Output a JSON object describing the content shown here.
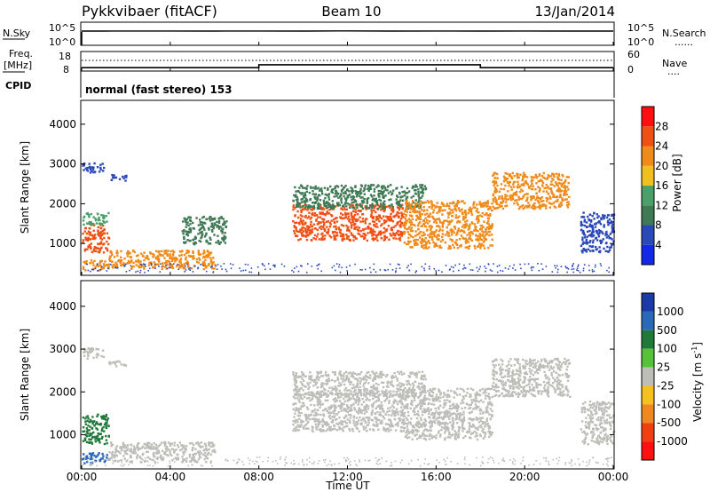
{
  "header": {
    "station": "Pykkvibaer (fitACF)",
    "beam": "Beam 10",
    "date": "13/Jan/2014"
  },
  "panels": {
    "nsky_label": "N.Sky",
    "nsearch_label": "N.Search",
    "freq_label_1": "Freq.",
    "freq_label_2": "[MHz]",
    "nave_label": "Nave",
    "cpid_label": "CPID",
    "cpid_value": "normal (fast stereo) 153",
    "dots": "......",
    "dots_short": "...."
  },
  "chart_data": [
    {
      "type": "line",
      "panel": "noise",
      "left_axis": {
        "label": "N.Sky",
        "ticks": [
          "10^5",
          "10^0"
        ],
        "scale": "log"
      },
      "right_axis": {
        "label": "N.Search",
        "ticks": [
          "10^5",
          "10^0"
        ],
        "scale": "log"
      },
      "series": [
        {
          "name": "N.Sky",
          "x": [
            0,
            1,
            4,
            6,
            8,
            10,
            12,
            14,
            16,
            18,
            20,
            22,
            24
          ],
          "values": [
            3000,
            3000,
            3200,
            3000,
            3100,
            3000,
            3300,
            3000,
            3100,
            3000,
            3200,
            3000,
            3000
          ]
        }
      ]
    },
    {
      "type": "line",
      "panel": "freq_nave",
      "left_axis": {
        "label": "Freq. [MHz]",
        "ticks": [
          18,
          8
        ]
      },
      "right_axis": {
        "label": "Nave",
        "ticks": [
          60,
          0
        ]
      },
      "series": [
        {
          "name": "Freq.",
          "x": [
            0,
            8,
            8,
            18,
            18,
            24
          ],
          "values": [
            9.5,
            9.5,
            11.2,
            11.2,
            9.5,
            9.5
          ]
        },
        {
          "name": "Nave",
          "x": [
            0,
            24
          ],
          "values": [
            30,
            30
          ]
        }
      ]
    },
    {
      "type": "heatmap",
      "panel": "power",
      "ylabel": "Slant Range [km]",
      "ylim": [
        200,
        4600
      ],
      "yticks": [
        1000,
        2000,
        3000,
        4000
      ],
      "xlim": [
        0,
        24
      ],
      "colorbar": {
        "label": "Power [dB]",
        "ticks": [
          4,
          8,
          12,
          16,
          20,
          24,
          28
        ],
        "range": [
          0,
          32
        ]
      },
      "regions": [
        {
          "x": [
            0,
            1.2
          ],
          "y": [
            800,
            1500
          ],
          "level": 26
        },
        {
          "x": [
            0,
            1.2
          ],
          "y": [
            1500,
            1800
          ],
          "level": 12
        },
        {
          "x": [
            0,
            1.2
          ],
          "y": [
            350,
            600
          ],
          "level": 22
        },
        {
          "x": [
            0,
            1.0
          ],
          "y": [
            2800,
            3050
          ],
          "level": 6
        },
        {
          "x": [
            1.2,
            2.0
          ],
          "y": [
            2600,
            2750
          ],
          "level": 6
        },
        {
          "x": [
            1.2,
            6.0
          ],
          "y": [
            380,
            850
          ],
          "level": 22
        },
        {
          "x": [
            4.5,
            6.5
          ],
          "y": [
            1000,
            1700
          ],
          "level": 10
        },
        {
          "x": [
            9.5,
            14.5
          ],
          "y": [
            1100,
            2000
          ],
          "level": 25
        },
        {
          "x": [
            9.5,
            15.5
          ],
          "y": [
            1900,
            2500
          ],
          "level": 11
        },
        {
          "x": [
            14.5,
            18.5
          ],
          "y": [
            900,
            2100
          ],
          "level": 23
        },
        {
          "x": [
            18.5,
            22.0
          ],
          "y": [
            1900,
            2800
          ],
          "level": 20
        },
        {
          "x": [
            22.5,
            24.0
          ],
          "y": [
            800,
            1800
          ],
          "level": 7
        }
      ]
    },
    {
      "type": "heatmap",
      "panel": "velocity",
      "ylabel": "Slant Range [km]",
      "xlabel": "Time UT",
      "ylim": [
        200,
        4600
      ],
      "yticks": [
        1000,
        2000,
        3000,
        4000
      ],
      "xlim": [
        0,
        24
      ],
      "xticks": [
        "00:00",
        "04:00",
        "08:00",
        "12:00",
        "16:00",
        "20:00",
        "00:00"
      ],
      "colorbar": {
        "label": "Velocity [m s-1]",
        "ticks": [
          1000,
          500,
          100,
          25,
          -25,
          -100,
          -500,
          -1000
        ]
      },
      "regions": [
        {
          "x": [
            0,
            1.2
          ],
          "y": [
            800,
            1500
          ],
          "level": 100
        },
        {
          "x": [
            0,
            1.2
          ],
          "y": [
            350,
            600
          ],
          "level": 500
        },
        {
          "x": [
            0,
            1.0
          ],
          "y": [
            2800,
            3050
          ],
          "level": 0
        },
        {
          "x": [
            1.2,
            2.0
          ],
          "y": [
            2600,
            2750
          ],
          "level": 0
        },
        {
          "x": [
            1.2,
            6.0
          ],
          "y": [
            380,
            850
          ],
          "level": 0
        },
        {
          "x": [
            9.5,
            14.5
          ],
          "y": [
            1100,
            2000
          ],
          "level": 0
        },
        {
          "x": [
            9.5,
            15.5
          ],
          "y": [
            1900,
            2500
          ],
          "level": 0
        },
        {
          "x": [
            14.5,
            18.5
          ],
          "y": [
            900,
            2100
          ],
          "level": 0
        },
        {
          "x": [
            18.5,
            22.0
          ],
          "y": [
            1900,
            2800
          ],
          "level": 0
        },
        {
          "x": [
            22.5,
            24.0
          ],
          "y": [
            800,
            1800
          ],
          "level": 0
        }
      ]
    }
  ],
  "power_colors": [
    "#1428e8",
    "#2a48b8",
    "#3f7a55",
    "#4aa068",
    "#f0c020",
    "#f08a18",
    "#f05014",
    "#ff1010"
  ],
  "velocity_colors": [
    "#1a3aa8",
    "#2a68b8",
    "#1f7a3a",
    "#55c23a",
    "#bebeb8",
    "#f5c020",
    "#f08820",
    "#f04010",
    "#ff1010"
  ],
  "texts": {
    "power_cb_label": "Power [dB]",
    "velocity_cb_label": "Velocity [m s",
    "velocity_cb_sup": "-1",
    "velocity_cb_close": "]",
    "ylabel": "Slant Range [km]",
    "xlabel": "Time UT"
  }
}
